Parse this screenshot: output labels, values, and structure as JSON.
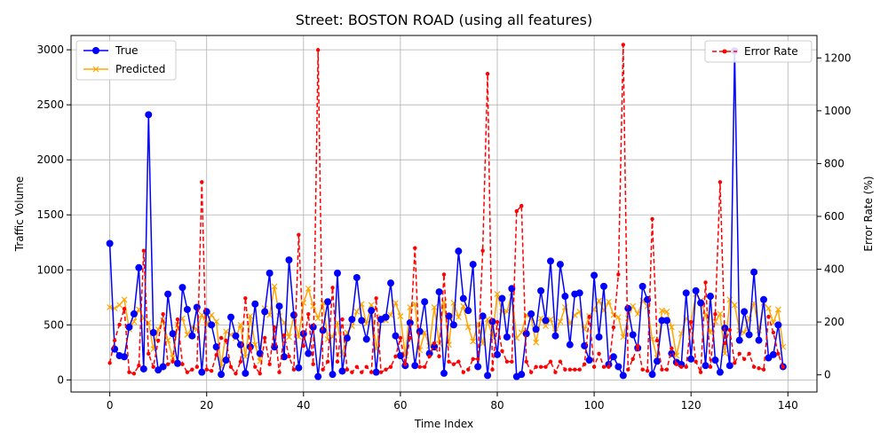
{
  "chart_data": {
    "type": "line",
    "title": "Street: BOSTON ROAD (using all features)",
    "xlabel": "Time Index",
    "ylabel": "Traffic Volume",
    "y2label": "Error Rate (%)",
    "xlim": [
      -8,
      146
    ],
    "ylim": [
      -110,
      3130
    ],
    "y2lim": [
      -65,
      1285
    ],
    "xticks": [
      0,
      20,
      40,
      60,
      80,
      100,
      120,
      140
    ],
    "yticks": [
      0,
      500,
      1000,
      1500,
      2000,
      2500,
      3000
    ],
    "y2ticks": [
      0,
      200,
      400,
      600,
      800,
      1000,
      1200
    ],
    "grid": true,
    "legend_left_placement": "upper-left",
    "legend_right_placement": "upper-right",
    "colors": {
      "true": "#0000ff",
      "predicted": "#ffa500",
      "error": "#ff0000"
    },
    "series": [
      {
        "name": "True",
        "axis": "left",
        "style": "solid-circle",
        "values": [
          1240,
          280,
          220,
          210,
          480,
          600,
          1020,
          100,
          2410,
          430,
          90,
          120,
          780,
          420,
          150,
          840,
          640,
          400,
          660,
          70,
          620,
          500,
          300,
          50,
          180,
          570,
          400,
          320,
          60,
          300,
          690,
          240,
          620,
          970,
          300,
          670,
          210,
          1090,
          590,
          110,
          420,
          240,
          480,
          30,
          450,
          710,
          50,
          970,
          80,
          380,
          550,
          930,
          540,
          370,
          630,
          70,
          550,
          570,
          880,
          400,
          220,
          130,
          520,
          130,
          440,
          710,
          240,
          300,
          800,
          60,
          580,
          500,
          1170,
          740,
          630,
          1050,
          120,
          580,
          40,
          530,
          230,
          740,
          390,
          830,
          30,
          50,
          420,
          600,
          460,
          810,
          540,
          1080,
          400,
          1050,
          760,
          320,
          780,
          790,
          310,
          180,
          950,
          390,
          850,
          140,
          210,
          120,
          40,
          650,
          410,
          290,
          850,
          730,
          50,
          170,
          540,
          540,
          240,
          160,
          140,
          790,
          190,
          810,
          700,
          130,
          760,
          180,
          70,
          470,
          130,
          2990,
          360,
          620,
          410,
          980,
          360,
          730,
          200,
          230,
          500,
          120
        ]
      },
      {
        "name": "Predicted",
        "axis": "left",
        "style": "solid-x",
        "values": [
          660,
          650,
          680,
          730,
          460,
          530,
          640,
          560,
          520,
          280,
          460,
          540,
          360,
          200,
          500,
          560,
          410,
          480,
          460,
          590,
          500,
          590,
          530,
          120,
          440,
          410,
          380,
          500,
          210,
          580,
          320,
          170,
          650,
          590,
          850,
          580,
          520,
          390,
          580,
          390,
          700,
          830,
          670,
          560,
          700,
          370,
          390,
          520,
          230,
          430,
          490,
          620,
          690,
          510,
          680,
          280,
          570,
          540,
          590,
          700,
          580,
          220,
          660,
          690,
          270,
          430,
          310,
          660,
          330,
          710,
          320,
          700,
          570,
          670,
          480,
          350,
          510,
          330,
          550,
          390,
          780,
          620,
          620,
          790,
          380,
          430,
          590,
          560,
          340,
          560,
          490,
          550,
          430,
          530,
          660,
          510,
          590,
          620,
          460,
          580,
          640,
          720,
          630,
          710,
          590,
          570,
          390,
          560,
          670,
          600,
          720,
          670,
          370,
          200,
          630,
          620,
          480,
          220,
          420,
          560,
          520,
          780,
          720,
          590,
          430,
          530,
          600,
          240,
          730,
          680,
          450,
          430,
          560,
          700,
          450,
          700,
          650,
          520,
          640,
          300
        ]
      },
      {
        "name": "Error Rate",
        "axis": "right",
        "style": "dashed-dot",
        "values": [
          45,
          130,
          190,
          250,
          10,
          5,
          35,
          470,
          80,
          30,
          130,
          230,
          40,
          50,
          210,
          40,
          10,
          20,
          30,
          730,
          20,
          15,
          75,
          140,
          130,
          30,
          5,
          50,
          290,
          100,
          30,
          5,
          140,
          40,
          180,
          10,
          150,
          70,
          20,
          530,
          110,
          230,
          40,
          1230,
          20,
          50,
          330,
          50,
          210,
          20,
          10,
          30,
          10,
          30,
          10,
          290,
          10,
          20,
          30,
          70,
          140,
          40,
          140,
          480,
          30,
          30,
          70,
          120,
          70,
          380,
          50,
          40,
          50,
          10,
          20,
          60,
          60,
          470,
          1140,
          20,
          200,
          90,
          50,
          50,
          620,
          640,
          50,
          10,
          30,
          30,
          30,
          50,
          10,
          50,
          20,
          20,
          20,
          20,
          40,
          220,
          30,
          80,
          30,
          30,
          180,
          380,
          1250,
          20,
          60,
          110,
          20,
          15,
          590,
          130,
          20,
          20,
          100,
          40,
          30,
          30,
          200,
          50,
          10,
          350,
          30,
          230,
          730,
          120,
          170,
          45,
          80,
          60,
          80,
          30,
          25,
          20,
          220,
          160,
          80,
          30
        ]
      }
    ]
  }
}
